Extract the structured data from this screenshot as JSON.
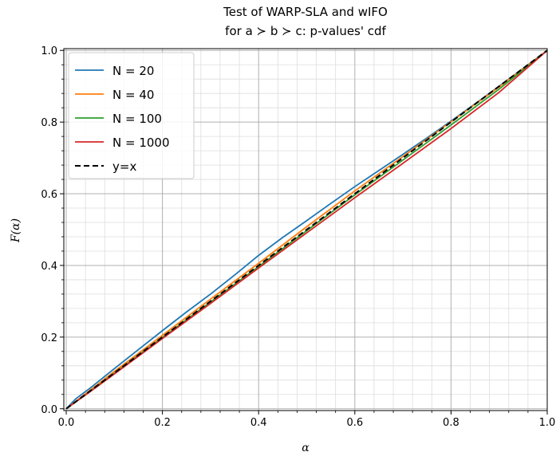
{
  "chart_data": {
    "type": "line",
    "title_line1": "Test of WARP-SLA and wIFO",
    "title_line2": "for a ≻ b ≻ c: p-values' cdf",
    "xlabel": "α",
    "ylabel": "F(α)",
    "xlim": [
      -0.005,
      1.0
    ],
    "ylim": [
      -0.005,
      1.005
    ],
    "xticks": [
      "0.0",
      "0.2",
      "0.4",
      "0.6",
      "0.8",
      "1.0"
    ],
    "yticks": [
      "0.0",
      "0.2",
      "0.4",
      "0.6",
      "0.8",
      "1.0"
    ],
    "grid": true,
    "minor_grid": true,
    "legend_position": "top-left",
    "series": [
      {
        "name": "N = 20",
        "color": "#1f77b4",
        "dash": "solid",
        "x": [
          0.0,
          0.02,
          0.05,
          0.1,
          0.15,
          0.2,
          0.25,
          0.3,
          0.35,
          0.4,
          0.45,
          0.5,
          0.55,
          0.6,
          0.65,
          0.7,
          0.75,
          0.8,
          0.85,
          0.9,
          0.95,
          1.0
        ],
        "y": [
          0.0,
          0.028,
          0.058,
          0.112,
          0.165,
          0.218,
          0.27,
          0.32,
          0.373,
          0.428,
          0.478,
          0.525,
          0.573,
          0.62,
          0.665,
          0.71,
          0.756,
          0.803,
          0.851,
          0.9,
          0.95,
          1.0
        ]
      },
      {
        "name": "N = 40",
        "color": "#ff7f0e",
        "dash": "solid",
        "x": [
          0.0,
          0.05,
          0.1,
          0.2,
          0.3,
          0.4,
          0.5,
          0.6,
          0.7,
          0.8,
          0.9,
          1.0
        ],
        "y": [
          0.0,
          0.052,
          0.104,
          0.205,
          0.306,
          0.406,
          0.508,
          0.608,
          0.704,
          0.801,
          0.898,
          1.0
        ]
      },
      {
        "name": "N = 100",
        "color": "#2ca02c",
        "dash": "solid",
        "x": [
          0.0,
          0.05,
          0.1,
          0.2,
          0.3,
          0.4,
          0.5,
          0.6,
          0.7,
          0.8,
          0.9,
          1.0
        ],
        "y": [
          0.0,
          0.049,
          0.099,
          0.199,
          0.298,
          0.397,
          0.497,
          0.597,
          0.694,
          0.792,
          0.892,
          1.0
        ]
      },
      {
        "name": "N = 1000",
        "color": "#d62728",
        "dash": "solid",
        "x": [
          0.0,
          0.05,
          0.1,
          0.2,
          0.3,
          0.4,
          0.5,
          0.6,
          0.7,
          0.8,
          0.9,
          1.0
        ],
        "y": [
          0.0,
          0.048,
          0.097,
          0.196,
          0.294,
          0.393,
          0.491,
          0.589,
          0.685,
          0.782,
          0.883,
          1.0
        ]
      },
      {
        "name": "y=x",
        "color": "#000000",
        "dash": "dashed",
        "x": [
          0.0,
          1.0
        ],
        "y": [
          0.0,
          1.0
        ]
      }
    ]
  }
}
